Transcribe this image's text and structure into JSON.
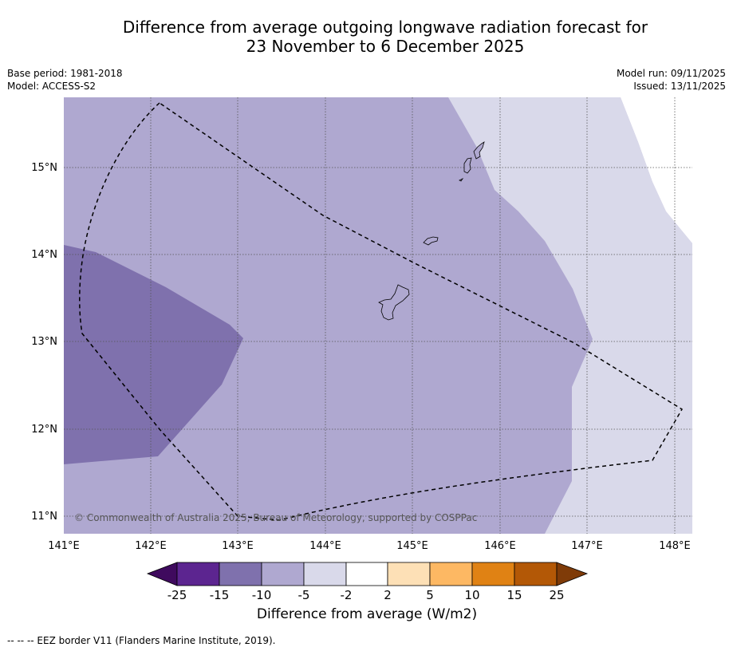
{
  "title_line1": "Difference from average outgoing longwave radiation forecast for",
  "title_line2": "23 November to 6 December 2025",
  "base_period": "Base period: 1981-2018",
  "model": "Model: ACCESS-S2",
  "model_run": "Model run: 09/11/2025",
  "issued": "Issued: 13/11/2025",
  "copyright": "© Commonwealth of Australia 2025, Bureau of Meteorology, supported by COSPPac",
  "lat_labels": [
    "15°N",
    "14°N",
    "13°N",
    "12°N",
    "11°N"
  ],
  "lon_labels": [
    "141°E",
    "142°E",
    "143°E",
    "144°E",
    "145°E",
    "146°E",
    "147°E",
    "148°E"
  ],
  "colorbar": {
    "title": "Difference from average (W/m2)",
    "ticks": [
      "-25",
      "-15",
      "-10",
      "-5",
      "-2",
      "2",
      "5",
      "10",
      "15",
      "25"
    ],
    "colors": [
      "#3f0a5e",
      "#5c2590",
      "#7f71ad",
      "#afa8d0",
      "#d9d9ea",
      "#ffffff",
      "#fde0b6",
      "#fdb863",
      "#e08214",
      "#b35806",
      "#7f3b08"
    ]
  },
  "footer": "-- -- -- EEZ border V11 (Flanders Marine Institute, 2019)."
}
